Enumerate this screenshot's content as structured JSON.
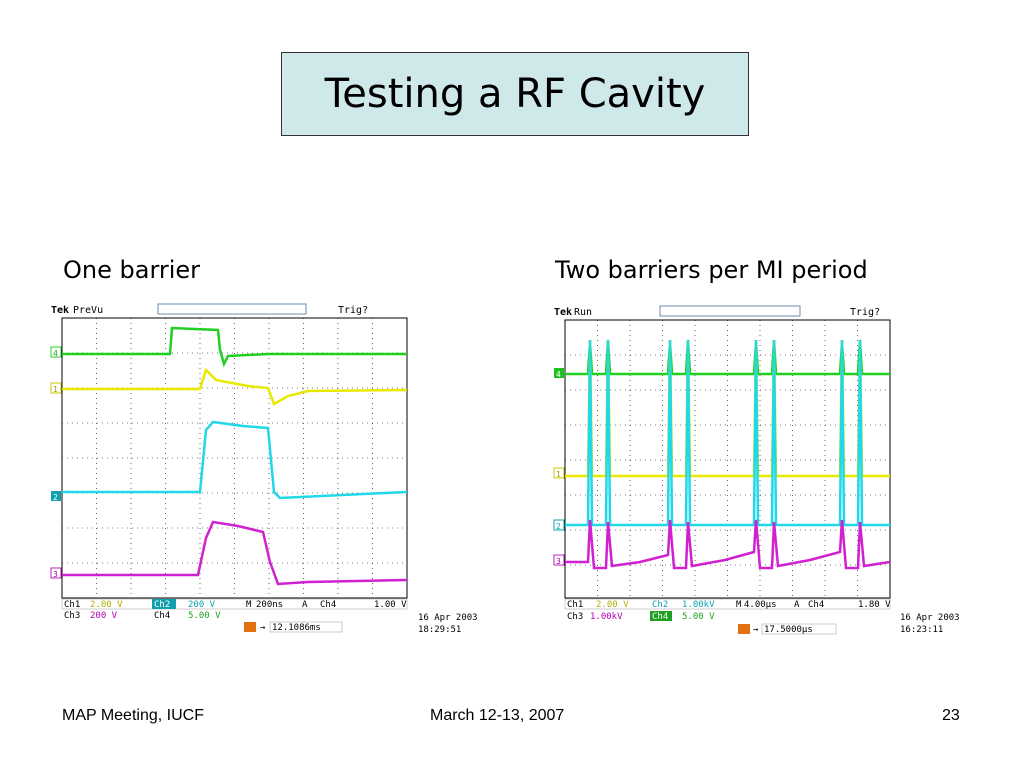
{
  "slide": {
    "title": "Testing a RF Cavity",
    "left_caption": "One barrier",
    "right_caption": "Two barriers per MI period"
  },
  "scopes": [
    {
      "brand": "Tek",
      "mode": "PreVu",
      "trig": "Trig?",
      "ch1": "2.00 V",
      "ch2": "200 V",
      "ch3": "200 V",
      "ch4": "5.00 V",
      "timebase": "200ns",
      "trigger_source": "Ch4",
      "trigger_level": "1.00 V",
      "trigger_pos": "12.1086ms",
      "date": "16 Apr 2003",
      "time": "18:29:51",
      "colors": {
        "ch1": "#e8e800",
        "ch2": "#20d8e8",
        "ch3": "#d020d0",
        "ch4": "#20d020"
      }
    },
    {
      "brand": "Tek",
      "mode": "Run",
      "trig": "Trig?",
      "ch1": "2.00 V",
      "ch2": "1.00kV",
      "ch3": "1.00kV",
      "ch4": "5.00 V",
      "timebase": "4.00μs",
      "trigger_source": "Ch4",
      "trigger_level": "1.80 V",
      "trigger_pos": "17.5000μs",
      "date": "16 Apr 2003",
      "time": "16:23:11",
      "colors": {
        "ch1": "#e8e800",
        "ch2": "#20d8e8",
        "ch3": "#d020d0",
        "ch4": "#20d020"
      }
    }
  ],
  "footer": {
    "left": "MAP Meeting, IUCF",
    "center": "March 12-13, 2007",
    "page": "23"
  }
}
